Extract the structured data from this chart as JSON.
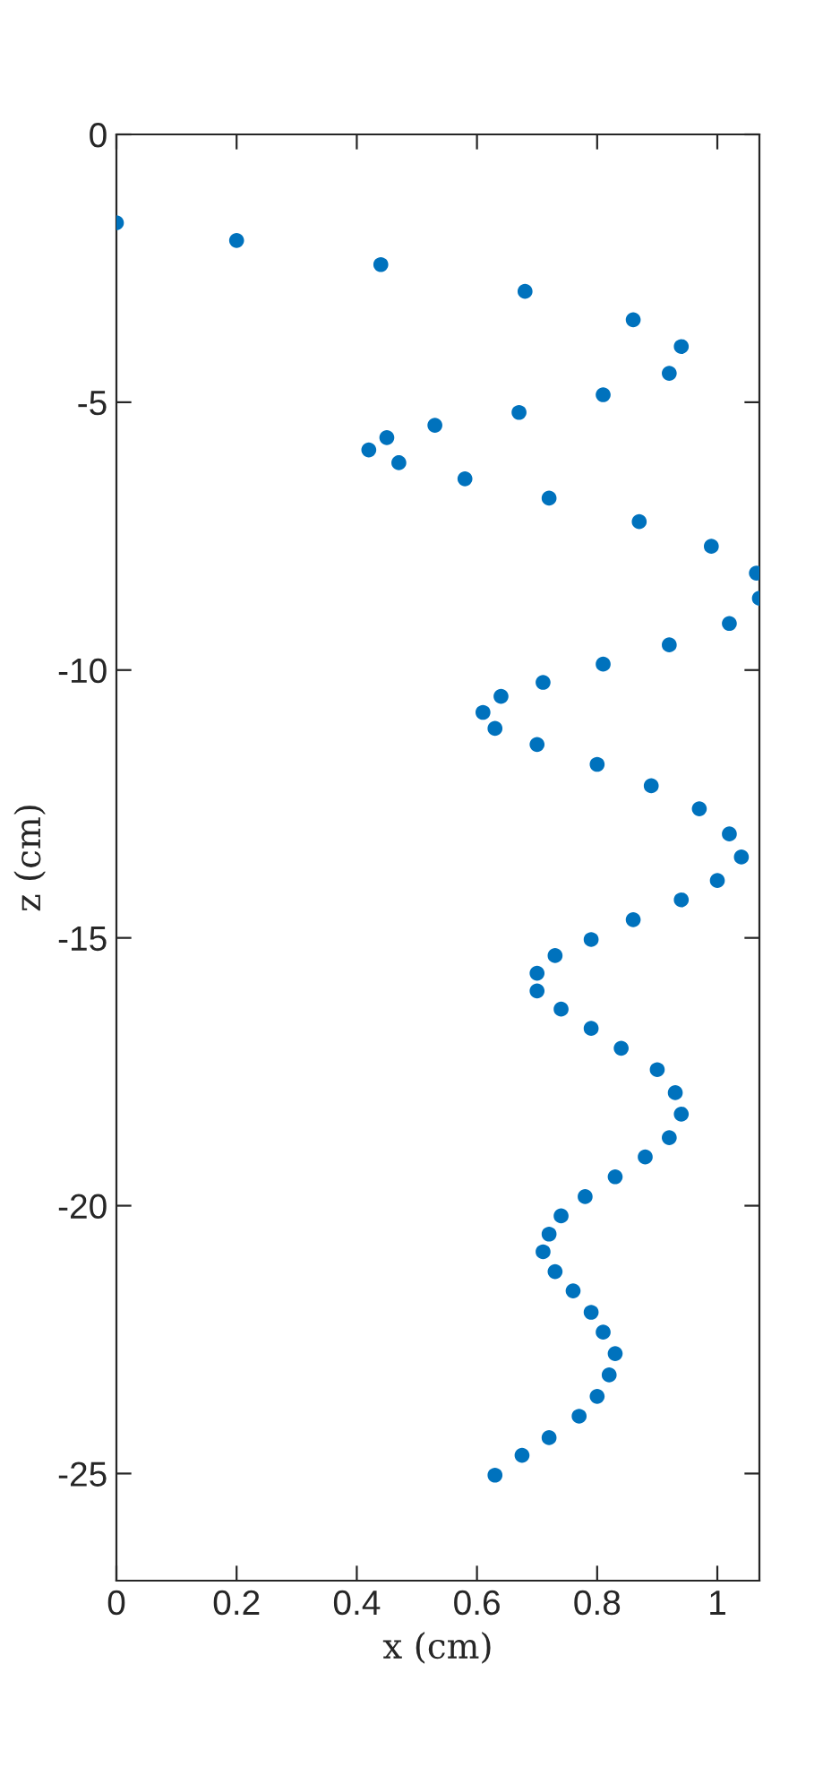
{
  "chart_data": {
    "type": "scatter",
    "xlabel": "x (cm)",
    "ylabel": "z (cm)",
    "xlim": [
      0,
      1.07
    ],
    "ylim": [
      -27,
      0
    ],
    "xticks": [
      0,
      0.2,
      0.4,
      0.6,
      0.8,
      1
    ],
    "yticks": [
      -25,
      -20,
      -15,
      -10,
      -5,
      0
    ],
    "grid": false,
    "legend": false,
    "marker": "circle",
    "series": [
      {
        "color": "#0072bd",
        "x": [
          0,
          0.2,
          0.44,
          0.68,
          0.86,
          0.94,
          0.92,
          0.81,
          0.67,
          0.53,
          0.45,
          0.42,
          0.47,
          0.58,
          0.72,
          0.87,
          0.99,
          1.065,
          1.07,
          1.02,
          0.92,
          0.81,
          0.71,
          0.64,
          0.61,
          0.63,
          0.7,
          0.8,
          0.89,
          0.97,
          1.02,
          1.04,
          1.0,
          0.94,
          0.86,
          0.79,
          0.73,
          0.7,
          0.7,
          0.74,
          0.79,
          0.84,
          0.9,
          0.93,
          0.94,
          0.92,
          0.88,
          0.83,
          0.78,
          0.74,
          0.72,
          0.71,
          0.73,
          0.76,
          0.79,
          0.81,
          0.83,
          0.82,
          0.8,
          0.77,
          0.72,
          0.675,
          0.63
        ],
        "values": [
          -1.65,
          -1.98,
          -2.43,
          -2.93,
          -3.46,
          -3.96,
          -4.46,
          -4.86,
          -5.19,
          -5.43,
          -5.66,
          -5.89,
          -6.13,
          -6.43,
          -6.79,
          -7.23,
          -7.69,
          -8.19,
          -8.66,
          -9.13,
          -9.53,
          -9.89,
          -10.23,
          -10.49,
          -10.79,
          -11.09,
          -11.39,
          -11.76,
          -12.16,
          -12.59,
          -13.06,
          -13.49,
          -13.93,
          -14.29,
          -14.66,
          -15.03,
          -15.33,
          -15.66,
          -15.99,
          -16.33,
          -16.69,
          -17.06,
          -17.46,
          -17.89,
          -18.29,
          -18.73,
          -19.09,
          -19.46,
          -19.83,
          -20.19,
          -20.53,
          -20.86,
          -21.23,
          -21.59,
          -21.99,
          -22.36,
          -22.76,
          -23.16,
          -23.56,
          -23.93,
          -24.33,
          -24.66,
          -25.03
        ]
      }
    ]
  }
}
